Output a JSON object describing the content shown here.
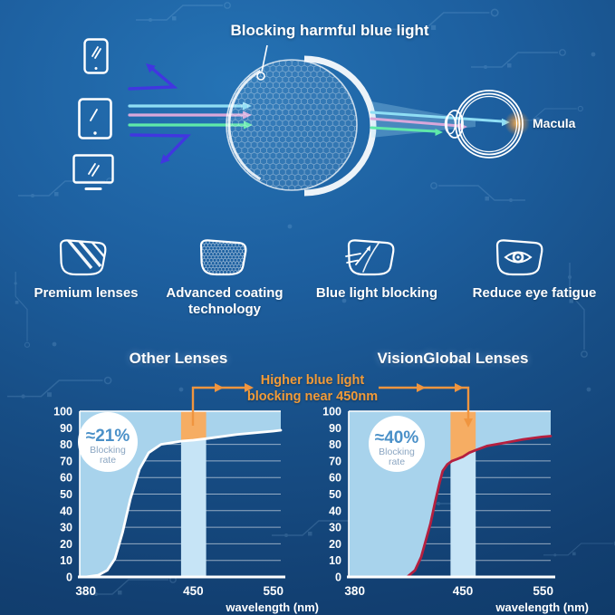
{
  "hero": {
    "callout": "Blocking harmful blue light",
    "macula_label": "Macula",
    "devices": [
      {
        "icon": "smartphone-icon"
      },
      {
        "icon": "tablet-icon"
      },
      {
        "icon": "monitor-icon"
      }
    ],
    "rays": {
      "passing": [
        "cyan",
        "pink",
        "green"
      ],
      "blocked": "indigo"
    }
  },
  "features": [
    {
      "icon": "premium-lenses-icon",
      "label": "Premium lenses"
    },
    {
      "icon": "advanced-coating-icon",
      "label": "Advanced coating technology"
    },
    {
      "icon": "blue-light-blocking-icon",
      "label": "Blue light blocking"
    },
    {
      "icon": "reduce-eye-fatigue-icon",
      "label": "Reduce eye fatigue"
    }
  ],
  "comparison": {
    "annotation": {
      "line1": "Higher blue light",
      "line2": "blocking near 450nm"
    }
  },
  "colors": {
    "accent_orange": "#f0953f",
    "annotation_text": "#f29b38",
    "chart_fill": "#a8d3ec",
    "band": "#c6e4f6",
    "band_highlight": "#f6ad63",
    "curve_other": "#ffffff",
    "curve_visionglobal": "#b51f3f",
    "badge_value_text": "#4a90c8",
    "ray_cyan": "#8fdef4",
    "ray_pink": "#d9a7da",
    "ray_green": "#5fe9a9",
    "ray_blocked_indigo": "#4136e0"
  },
  "chart_data": [
    {
      "type": "area",
      "title": "Other Lenses",
      "badge": {
        "value": "≈21%",
        "label_line1": "Blocking",
        "label_line2": "rate"
      },
      "xlabel": "wavelength (nm)",
      "x_ticks": [
        380,
        450,
        550
      ],
      "y_ticks": [
        0,
        10,
        20,
        30,
        40,
        50,
        60,
        70,
        80,
        90,
        100
      ],
      "ylim": [
        0,
        100
      ],
      "x_anchor_fractions": [
        [
          380,
          0.03
        ],
        [
          450,
          0.565
        ],
        [
          550,
          0.963
        ]
      ],
      "highlight_band_nm": [
        442,
        466
      ],
      "fill_color": "#a8d3ec",
      "band_color": "#c6e4f6",
      "band_highlight_color": "#f6ad63",
      "curve_color": "#ffffff",
      "series": [
        {
          "name": "blocking rate (%)",
          "points": [
            [
              380,
              0
            ],
            [
              388,
              1
            ],
            [
              394,
              4
            ],
            [
              399,
              11
            ],
            [
              404,
              27
            ],
            [
              409,
              47
            ],
            [
              415,
              65
            ],
            [
              421,
              75
            ],
            [
              429,
              80
            ],
            [
              443,
              82
            ],
            [
              450,
              82.5
            ],
            [
              467,
              83.5
            ],
            [
              505,
              86
            ],
            [
              550,
              88
            ],
            [
              561,
              88.5
            ]
          ]
        }
      ]
    },
    {
      "type": "area",
      "title": "VisionGlobal Lenses",
      "badge": {
        "value": "≈40%",
        "label_line1": "Blocking",
        "label_line2": "rate"
      },
      "xlabel": "wavelength (nm)",
      "x_ticks": [
        380,
        450,
        550
      ],
      "y_ticks": [
        0,
        10,
        20,
        30,
        40,
        50,
        60,
        70,
        80,
        90,
        100
      ],
      "ylim": [
        0,
        100
      ],
      "x_anchor_fractions": [
        [
          380,
          0.03
        ],
        [
          450,
          0.565
        ],
        [
          550,
          0.963
        ]
      ],
      "highlight_band_nm": [
        442,
        466
      ],
      "fill_color": "#a8d3ec",
      "band_color": "#c6e4f6",
      "band_highlight_color": "#f6ad63",
      "curve_color": "#b51f3f",
      "series": [
        {
          "name": "blocking rate (%)",
          "points": [
            [
              380,
              0
            ],
            [
              414,
              0
            ],
            [
              419,
              4
            ],
            [
              423,
              12
            ],
            [
              426,
              22
            ],
            [
              429,
              32
            ],
            [
              432,
              45
            ],
            [
              435,
              57
            ],
            [
              437,
              64
            ],
            [
              440,
              68
            ],
            [
              443,
              70
            ],
            [
              446,
              71
            ],
            [
              450,
              72.5
            ],
            [
              458,
              75
            ],
            [
              466,
              76.5
            ],
            [
              480,
              79
            ],
            [
              503,
              81
            ],
            [
              525,
              83
            ],
            [
              548,
              84.5
            ],
            [
              561,
              85
            ]
          ]
        }
      ]
    }
  ]
}
